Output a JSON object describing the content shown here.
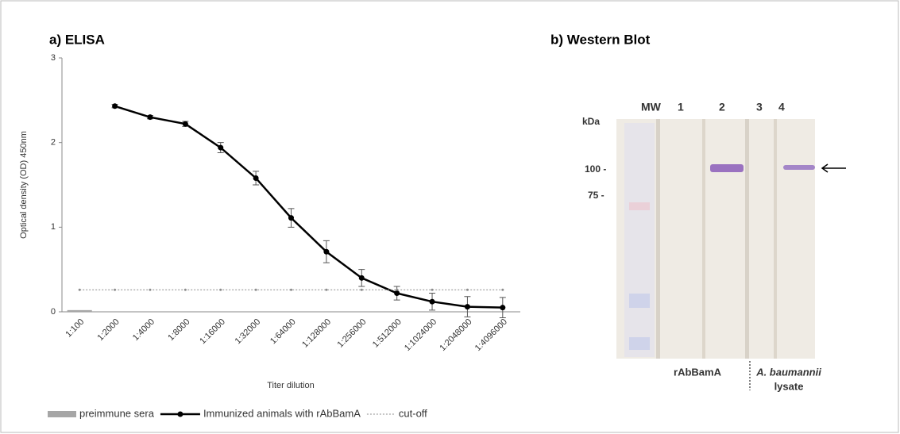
{
  "chart_data": {
    "type": "line",
    "title": "a) ELISA",
    "y_label": "Optical density (OD) 450nm",
    "x_label": "Titer dilution",
    "categories": [
      "1:100",
      "1:2000",
      "1:4000",
      "1:8000",
      "1:16000",
      "1:32000",
      "1:64000",
      "1:128000",
      "1:256000",
      "1:512000",
      "1:1024000",
      "1:2048000",
      "1:4096000"
    ],
    "series": [
      {
        "name": "preimmune sera",
        "type": "bar",
        "color": "#a6a6a6",
        "values": [
          0.02,
          null,
          null,
          null,
          null,
          null,
          null,
          null,
          null,
          null,
          null,
          null,
          null
        ]
      },
      {
        "name": "Immunized animals with rAbBamA",
        "type": "line",
        "color": "#000000",
        "values": [
          null,
          2.43,
          2.3,
          2.22,
          1.94,
          1.58,
          1.11,
          0.71,
          0.4,
          0.22,
          0.12,
          0.06,
          0.05
        ],
        "errors": [
          null,
          0.02,
          0.02,
          0.03,
          0.06,
          0.08,
          0.11,
          0.13,
          0.1,
          0.08,
          0.1,
          0.12,
          0.12
        ]
      },
      {
        "name": "cut-off",
        "type": "dotted",
        "color": "#8c8c8c",
        "values": [
          0.26,
          0.26,
          0.26,
          0.26,
          0.26,
          0.26,
          0.26,
          0.26,
          0.26,
          0.26,
          0.26,
          0.26,
          0.26
        ]
      }
    ],
    "ylim": [
      0,
      3
    ],
    "yticks": [
      0,
      1,
      2,
      3
    ],
    "grid": false,
    "legend": "bottom"
  },
  "western_blot": {
    "title": "b) Western Blot",
    "lanes": [
      "MW",
      "1",
      "2",
      "3",
      "4"
    ],
    "unit": "kDa",
    "markers": [
      "100 -",
      "75 -"
    ],
    "groups": [
      "rAbBamA",
      "A. baumannii",
      "lysate"
    ]
  }
}
